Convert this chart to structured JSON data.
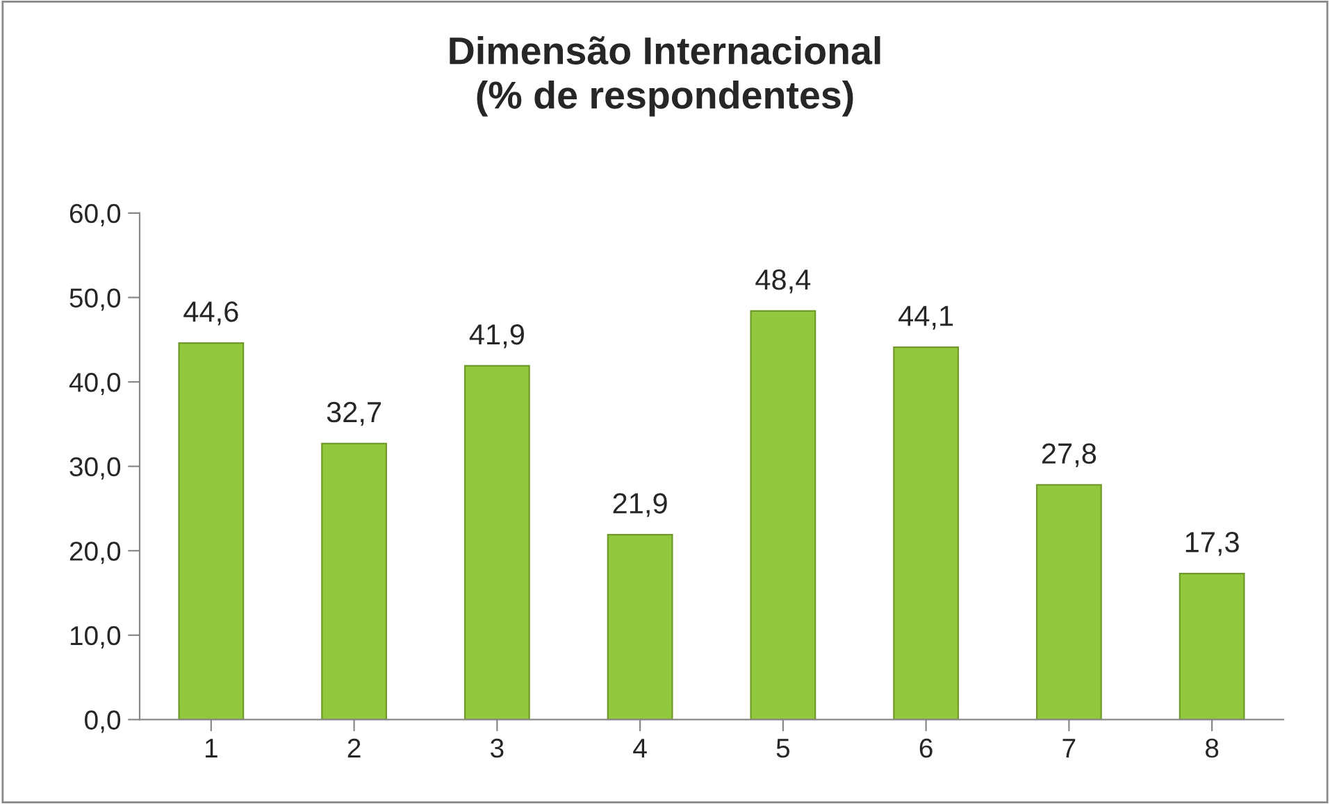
{
  "chart_data": {
    "type": "bar",
    "title": "Dimensão Internacional\n(% de respondentes)",
    "categories": [
      "1",
      "2",
      "3",
      "4",
      "5",
      "6",
      "7",
      "8"
    ],
    "values": [
      44.6,
      32.7,
      41.9,
      21.9,
      48.4,
      44.1,
      27.8,
      17.3
    ],
    "value_labels": [
      "44,6",
      "32,7",
      "41,9",
      "21,9",
      "48,4",
      "44,1",
      "27,8",
      "17,3"
    ],
    "color": "#92c83e",
    "ylim": [
      0,
      60
    ],
    "yticks": [
      {
        "value": 0,
        "label": "0,0"
      },
      {
        "value": 10,
        "label": "10,0"
      },
      {
        "value": 20,
        "label": "20,0"
      },
      {
        "value": 30,
        "label": "30,0"
      },
      {
        "value": 40,
        "label": "40,0"
      },
      {
        "value": 50,
        "label": "50,0"
      },
      {
        "value": 60,
        "label": "60,0"
      }
    ],
    "grid": false,
    "legend": false
  }
}
